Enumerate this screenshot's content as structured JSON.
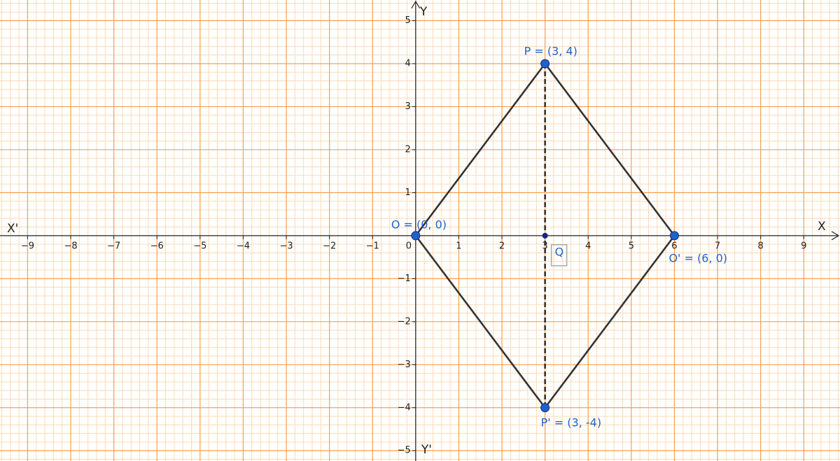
{
  "chart_data": {
    "type": "geometry",
    "xlim": [
      -9.64,
      9.84
    ],
    "ylim": [
      -5.24,
      5.48
    ],
    "xticks": [
      {
        "value": -9,
        "label": "−9"
      },
      {
        "value": -8,
        "label": "−8"
      },
      {
        "value": -7,
        "label": "−7"
      },
      {
        "value": -6,
        "label": "−6"
      },
      {
        "value": -5,
        "label": "−5"
      },
      {
        "value": -4,
        "label": "−4"
      },
      {
        "value": -3,
        "label": "−3"
      },
      {
        "value": -2,
        "label": "−2"
      },
      {
        "value": -1,
        "label": "−1"
      },
      0,
      1,
      2,
      3,
      4,
      5,
      6,
      7,
      8,
      9
    ],
    "yticks": [
      {
        "value": -5,
        "label": "−5"
      },
      {
        "value": -4,
        "label": "−4"
      },
      {
        "value": -3,
        "label": "−3"
      },
      {
        "value": -2,
        "label": "−2"
      },
      {
        "value": -1,
        "label": "−1"
      },
      1,
      2,
      3,
      4,
      5
    ],
    "minor_divisions": 5,
    "grid": true,
    "grid_color": "#f6a04c",
    "minor_grid_color": "#fcd9b5",
    "axis_labels": {
      "x_positive": "X",
      "x_negative": "X'",
      "y_positive": "Y",
      "y_negative": "Y'"
    },
    "points": [
      {
        "name": "O",
        "label": "O = (0, 0)",
        "x": 0,
        "y": 0,
        "color": "#1e64c8"
      },
      {
        "name": "P",
        "label": "P = (3, 4)",
        "x": 3,
        "y": 4,
        "color": "#1e64c8"
      },
      {
        "name": "O'",
        "label": "O' = (6, 0)",
        "x": 6,
        "y": 0,
        "color": "#1e64c8"
      },
      {
        "name": "P'",
        "label": "P' = (3, -4)",
        "x": 3,
        "y": -4,
        "color": "#1e64c8"
      },
      {
        "name": "Q",
        "label": "Q",
        "x": 3,
        "y": 0,
        "color": "#1a237e"
      }
    ],
    "segments": [
      {
        "from": "O",
        "to": "P",
        "style": "solid"
      },
      {
        "from": "P",
        "to": "O'",
        "style": "solid"
      },
      {
        "from": "O'",
        "to": "P'",
        "style": "solid"
      },
      {
        "from": "P'",
        "to": "O",
        "style": "solid"
      },
      {
        "from": "P",
        "to": "P'",
        "style": "dashed"
      }
    ],
    "segment_color": "#333333",
    "label_color": "#1e64c8"
  }
}
